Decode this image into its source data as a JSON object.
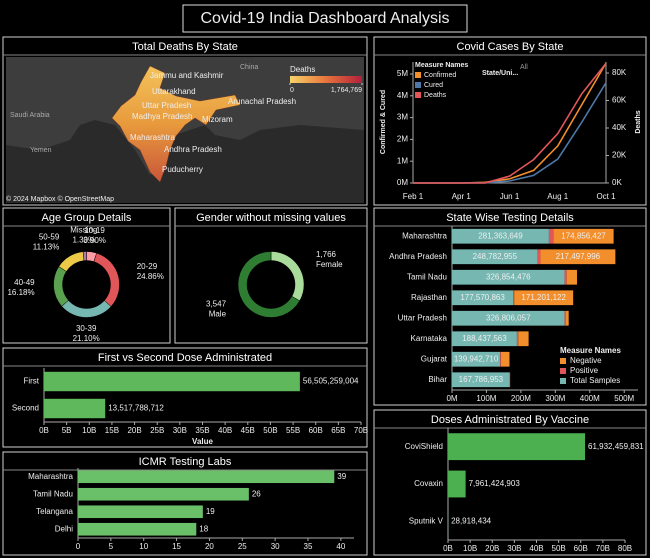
{
  "title": "Covid-19 India Dashboard Analysis",
  "chart_data": [
    {
      "type": "map",
      "title": "Total Deaths By State",
      "legend_title": "Deaths",
      "colorlim": [
        0,
        1764769
      ],
      "colorticks": [
        0,
        {
          "value": 1764769,
          "label": "1,764,769"
        }
      ],
      "colors": [
        "#f7d36a",
        "#e8743b",
        "#b3203c"
      ],
      "labels": [
        "Jammu and Kashmir",
        "Uttarakhand",
        "Uttar Pradesh",
        "Arunachal Pradesh",
        "Madhya Pradesh",
        "Mizoram",
        "Maharashtra",
        "Andhra Pradesh",
        "Puducherry"
      ],
      "basemap_labels": [
        "China",
        "Saudi Arabia",
        "Yemen"
      ],
      "attribution": "© 2024 Mapbox © OpenStreetMap"
    },
    {
      "type": "line",
      "title": "Covid Cases By State",
      "filter_label": "State/Uni...",
      "filter_value": "All",
      "legend_title": "Measure Names",
      "ylabel": "Confirmed & Cured",
      "y2label": "Deaths",
      "categories": [
        "Feb 1",
        null,
        "Apr 1",
        null,
        "Jun 1",
        null,
        "Aug 1",
        null,
        "Oct 1"
      ],
      "ylim": [
        0,
        5.55
      ],
      "yticks": [
        {
          "value": 0,
          "label": "0M"
        },
        {
          "value": 1,
          "label": "1M"
        },
        {
          "value": 2,
          "label": "2M"
        },
        {
          "value": 3,
          "label": "3M"
        },
        {
          "value": 4,
          "label": "4M"
        },
        {
          "value": 5,
          "label": "5M"
        }
      ],
      "y2lim": [
        0,
        88
      ],
      "y2ticks": [
        {
          "value": 0,
          "label": "0K"
        },
        {
          "value": 20,
          "label": "20K"
        },
        {
          "value": 40,
          "label": "40K"
        },
        {
          "value": 60,
          "label": "60K"
        },
        {
          "value": 80,
          "label": "80K"
        }
      ],
      "series": [
        {
          "name": "Confirmed",
          "color": "#f28e2b",
          "values": [
            0,
            0,
            0,
            0.03,
            0.19,
            0.58,
            1.7,
            3.6,
            5.5
          ]
        },
        {
          "name": "Cured",
          "color": "#4e79a7",
          "values": [
            0,
            0,
            0,
            0.01,
            0.09,
            0.35,
            1.1,
            2.8,
            4.6
          ]
        },
        {
          "name": "Deaths",
          "color": "#e15759",
          "axis": "y2",
          "values": [
            0,
            0,
            0,
            0.1,
            5,
            17,
            36,
            65,
            87
          ]
        }
      ]
    },
    {
      "type": "donut",
      "title": "Age Group Details",
      "categories": [
        "10-19",
        "20-29",
        "30-39",
        "40-49",
        "50-59",
        "Missing"
      ],
      "values": [
        3.9,
        24.86,
        21.1,
        16.18,
        11.13,
        1.3
      ],
      "value_labels": [
        "3.90%",
        "24.86%",
        "21.10%",
        "16.18%",
        "11.13%",
        "1.30%"
      ],
      "colors": [
        "#ff9da7",
        "#e15759",
        "#76b7b2",
        "#59a14f",
        "#edc948",
        "#b07aa1"
      ]
    },
    {
      "type": "donut",
      "title": "Gender without missing values",
      "categories": [
        "Female",
        "Male"
      ],
      "values": [
        1766,
        3547
      ],
      "value_labels": [
        "1,766",
        "3,547"
      ],
      "colors": [
        "#a9dc9a",
        "#2e7d32"
      ]
    },
    {
      "type": "stacked_bar",
      "title": "State Wise Testing Details",
      "legend_title": "Measure Names",
      "categories": [
        "Maharashtra",
        "Andhra Pradesh",
        "Tamil Nadu",
        "Rajasthan",
        "Uttar Pradesh",
        "Karnataka",
        "Gujarat",
        "Bihar"
      ],
      "xlim": [
        0,
        540000000
      ],
      "xticks": [
        {
          "value": 0,
          "label": "0M"
        },
        {
          "value": 100000000,
          "label": "100M"
        },
        {
          "value": 200000000,
          "label": "200M"
        },
        {
          "value": 300000000,
          "label": "300M"
        },
        {
          "value": 400000000,
          "label": "400M"
        },
        {
          "value": 500000000,
          "label": "500M"
        }
      ],
      "series": [
        {
          "name": "Total Samples",
          "color": "#76b7b2",
          "values": [
            281363649,
            248782955,
            326854476,
            177570863,
            326806057,
            188437563,
            139942710,
            167786953
          ],
          "value_labels": [
            "281,363,649",
            "248,782,955",
            "326,854,476",
            "177,570,863",
            "326,806,057",
            "188,437,563",
            "139,942,710",
            "167,786,953"
          ]
        },
        {
          "name": "Positive",
          "color": "#e15759",
          "values": [
            13000000,
            8000000,
            6000000,
            3000000,
            4000000,
            4000000,
            2000000,
            1000000
          ]
        },
        {
          "name": "Negative",
          "color": "#f28e2b",
          "values": [
            174856427,
            217497996,
            30000000,
            171201122,
            8000000,
            30000000,
            25000000,
            0
          ],
          "value_labels": [
            "174,856,427",
            "217,497,996",
            null,
            "171,201,122",
            null,
            null,
            null,
            null
          ]
        }
      ]
    },
    {
      "type": "bar",
      "title": "First vs Second Dose Administrated",
      "xlabel": "Value",
      "color": "#5fb85c",
      "categories": [
        "First",
        "Second"
      ],
      "values": [
        56505259004,
        13517788712
      ],
      "value_labels": [
        "56,505,259,004",
        "13,517,788,712"
      ],
      "xlim": [
        0,
        70000000000
      ],
      "xticks": [
        {
          "value": 0,
          "label": "0B"
        },
        {
          "value": 5000000000,
          "label": "5B"
        },
        {
          "value": 10000000000,
          "label": "10B"
        },
        {
          "value": 15000000000,
          "label": "15B"
        },
        {
          "value": 20000000000,
          "label": "20B"
        },
        {
          "value": 25000000000,
          "label": "25B"
        },
        {
          "value": 30000000000,
          "label": "30B"
        },
        {
          "value": 35000000000,
          "label": "35B"
        },
        {
          "value": 40000000000,
          "label": "40B"
        },
        {
          "value": 45000000000,
          "label": "45B"
        },
        {
          "value": 50000000000,
          "label": "50B"
        },
        {
          "value": 55000000000,
          "label": "55B"
        },
        {
          "value": 60000000000,
          "label": "60B"
        },
        {
          "value": 65000000000,
          "label": "65B"
        },
        {
          "value": 70000000000,
          "label": "70B"
        }
      ]
    },
    {
      "type": "bar",
      "title": "Doses Administrated By Vaccine",
      "color": "#4caf50",
      "categories": [
        "CoviShield",
        "Covaxin",
        "Sputnik V"
      ],
      "values": [
        61932459831,
        7961424903,
        28918434
      ],
      "value_labels": [
        "61,932,459,831",
        "7,961,424,903",
        "28,918,434"
      ],
      "xlim": [
        0,
        80000000000
      ],
      "xticks": [
        {
          "value": 0,
          "label": "0B"
        },
        {
          "value": 10000000000,
          "label": "10B"
        },
        {
          "value": 20000000000,
          "label": "20B"
        },
        {
          "value": 30000000000,
          "label": "30B"
        },
        {
          "value": 40000000000,
          "label": "40B"
        },
        {
          "value": 50000000000,
          "label": "50B"
        },
        {
          "value": 60000000000,
          "label": "60B"
        },
        {
          "value": 70000000000,
          "label": "70B"
        },
        {
          "value": 80000000000,
          "label": "80B"
        }
      ]
    },
    {
      "type": "bar",
      "title": "ICMR Testing Labs",
      "color": "#6abf69",
      "categories": [
        "Maharashtra",
        "Tamil Nadu",
        "Telangana",
        "Delhi"
      ],
      "values": [
        39,
        26,
        19,
        18
      ],
      "xlim": [
        0,
        42
      ],
      "xticks": [
        0,
        5,
        10,
        15,
        20,
        25,
        30,
        35,
        40
      ]
    }
  ]
}
